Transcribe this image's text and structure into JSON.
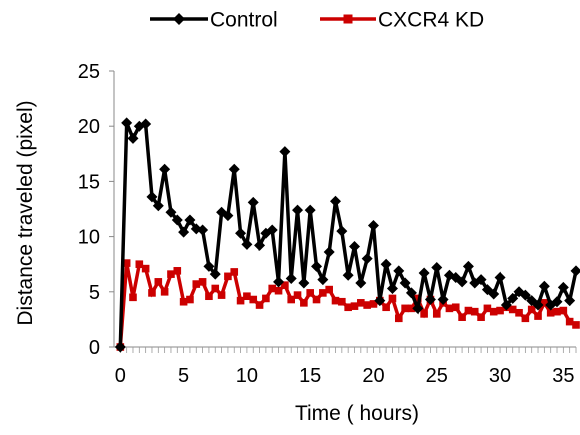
{
  "chart_data": {
    "type": "line",
    "title": "",
    "xlabel": "Time ( hours)",
    "ylabel": "Distance traveled (pixel)",
    "xlim": [
      -0.5,
      36
    ],
    "ylim": [
      0,
      25
    ],
    "xticks": [
      0,
      5,
      10,
      15,
      20,
      25,
      30,
      35
    ],
    "yticks": [
      0,
      5,
      10,
      15,
      20,
      25
    ],
    "grid": false,
    "legend": "top",
    "series": [
      {
        "name": "Control",
        "color": "#000000",
        "marker": "diamond",
        "x": [
          0,
          0.5,
          1,
          1.5,
          2,
          2.5,
          3,
          3.5,
          4,
          4.5,
          5,
          5.5,
          6,
          6.5,
          7,
          7.5,
          8,
          8.5,
          9,
          9.5,
          10,
          10.5,
          11,
          11.5,
          12,
          12.5,
          13,
          13.5,
          14,
          14.5,
          15,
          15.5,
          16,
          16.5,
          17,
          17.5,
          18,
          18.5,
          19,
          19.5,
          20,
          20.5,
          21,
          21.5,
          22,
          22.5,
          23,
          23.5,
          24,
          24.5,
          25,
          25.5,
          26,
          26.5,
          27,
          27.5,
          28,
          28.5,
          29,
          29.5,
          30,
          30.5,
          31,
          31.5,
          32,
          32.5,
          33,
          33.5,
          34,
          34.5,
          35,
          35.5,
          36
        ],
        "y": [
          0,
          20.3,
          18.9,
          20,
          20.2,
          13.6,
          12.8,
          16.1,
          12.2,
          11.5,
          10.4,
          11.5,
          10.7,
          10.6,
          7.3,
          6.6,
          12.2,
          11.9,
          16.1,
          10.3,
          9.3,
          13.1,
          9.2,
          10.3,
          10.6,
          5.9,
          17.7,
          6.2,
          12.4,
          5.8,
          12.4,
          7.3,
          6.1,
          8.6,
          13.2,
          10.5,
          6.5,
          9.1,
          5.8,
          8.0,
          11.0,
          4.2,
          7.5,
          5.3,
          6.9,
          5.8,
          4.9,
          3.5,
          6.7,
          4.3,
          7.2,
          4.3,
          6.5,
          6.3,
          5.9,
          7.3,
          5.8,
          6.1,
          5.2,
          4.8,
          6.3,
          3.8,
          4.4,
          5.0,
          4.7,
          4.2,
          3.8,
          5.5,
          3.8,
          4.1,
          5.4,
          4.2,
          6.9
        ]
      },
      {
        "name": "CXCR4 KD",
        "color": "#cc0000",
        "marker": "square",
        "x": [
          0,
          0.5,
          1,
          1.5,
          2,
          2.5,
          3,
          3.5,
          4,
          4.5,
          5,
          5.5,
          6,
          6.5,
          7,
          7.5,
          8,
          8.5,
          9,
          9.5,
          10,
          10.5,
          11,
          11.5,
          12,
          12.5,
          13,
          13.5,
          14,
          14.5,
          15,
          15.5,
          16,
          16.5,
          17,
          17.5,
          18,
          18.5,
          19,
          19.5,
          20,
          20.5,
          21,
          21.5,
          22,
          22.5,
          23,
          23.5,
          24,
          24.5,
          25,
          25.5,
          26,
          26.5,
          27,
          27.5,
          28,
          28.5,
          29,
          29.5,
          30,
          30.5,
          31,
          31.5,
          32,
          32.5,
          33,
          33.5,
          34,
          34.5,
          35,
          35.5,
          36
        ],
        "y": [
          0,
          7.6,
          4.5,
          7.5,
          7.1,
          4.9,
          5.9,
          5.0,
          6.6,
          6.9,
          4.1,
          4.3,
          5.7,
          5.9,
          4.6,
          5.3,
          4.7,
          6.4,
          6.8,
          4.2,
          4.6,
          4.3,
          3.8,
          4.4,
          5.3,
          5.1,
          5.6,
          4.3,
          4.7,
          4.0,
          4.9,
          4.3,
          4.9,
          5.2,
          4.2,
          4.1,
          3.6,
          3.7,
          4.0,
          3.8,
          3.9,
          4.2,
          3.6,
          4.4,
          2.6,
          3.5,
          3.5,
          4.4,
          3.0,
          4.3,
          3.0,
          4.0,
          3.5,
          3.6,
          2.7,
          3.3,
          3.2,
          2.7,
          3.5,
          3.2,
          3.3,
          3.6,
          3.4,
          3.1,
          2.6,
          3.4,
          2.8,
          4.0,
          3.1,
          3.2,
          3.3,
          2.3,
          2.0
        ]
      }
    ]
  }
}
